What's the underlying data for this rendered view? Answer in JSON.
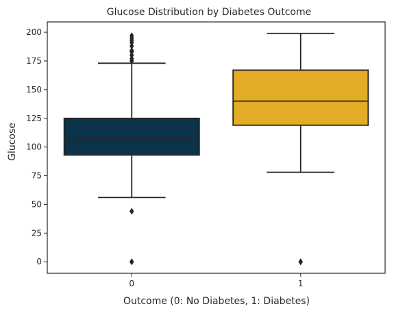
{
  "chart_data": {
    "type": "boxplot",
    "title": "Glucose Distribution by Diabetes Outcome",
    "xlabel": "Outcome (0: No Diabetes, 1: Diabetes)",
    "ylabel": "Glucose",
    "ylim": [
      -10,
      209
    ],
    "yticks": [
      0,
      25,
      50,
      75,
      100,
      125,
      150,
      175,
      200
    ],
    "grid": false,
    "categories": [
      "0",
      "1"
    ],
    "colors": [
      "#0b3349",
      "#e2ac24"
    ],
    "boxes": [
      {
        "category": "0",
        "whisker_low": 56,
        "q1": 93,
        "median": 107,
        "q3": 125,
        "whisker_high": 173,
        "outliers": [
          0,
          0,
          44,
          175,
          177,
          180,
          183,
          184,
          188,
          191,
          193,
          195,
          197
        ]
      },
      {
        "category": "1",
        "whisker_low": 78,
        "q1": 119,
        "median": 140,
        "q3": 167,
        "whisker_high": 199,
        "outliers": [
          0,
          0
        ]
      }
    ]
  }
}
